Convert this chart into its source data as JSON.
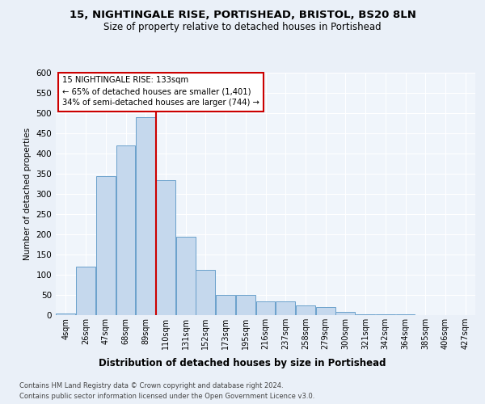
{
  "title1": "15, NIGHTINGALE RISE, PORTISHEAD, BRISTOL, BS20 8LN",
  "title2": "Size of property relative to detached houses in Portishead",
  "xlabel": "Distribution of detached houses by size in Portishead",
  "ylabel": "Number of detached properties",
  "categories": [
    "4sqm",
    "26sqm",
    "47sqm",
    "68sqm",
    "89sqm",
    "110sqm",
    "131sqm",
    "152sqm",
    "173sqm",
    "195sqm",
    "216sqm",
    "237sqm",
    "258sqm",
    "279sqm",
    "300sqm",
    "321sqm",
    "342sqm",
    "364sqm",
    "385sqm",
    "406sqm",
    "427sqm"
  ],
  "values": [
    5,
    120,
    345,
    420,
    490,
    335,
    195,
    112,
    50,
    50,
    35,
    35,
    25,
    20,
    8,
    3,
    2,
    2,
    1,
    1,
    1
  ],
  "bar_color": "#c5d8ed",
  "bar_edge_color": "#6aa0cb",
  "vline_index": 5,
  "vline_color": "#cc0000",
  "annotation_title": "15 NIGHTINGALE RISE: 133sqm",
  "annotation_line1": "← 65% of detached houses are smaller (1,401)",
  "annotation_line2": "34% of semi-detached houses are larger (744) →",
  "ylim": [
    0,
    600
  ],
  "yticks": [
    0,
    50,
    100,
    150,
    200,
    250,
    300,
    350,
    400,
    450,
    500,
    550,
    600
  ],
  "footnote1": "Contains HM Land Registry data © Crown copyright and database right 2024.",
  "footnote2": "Contains public sector information licensed under the Open Government Licence v3.0.",
  "bg_color": "#eaf0f8",
  "plot_bg_color": "#f0f5fb"
}
